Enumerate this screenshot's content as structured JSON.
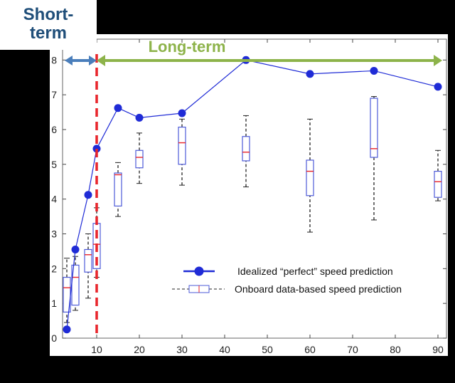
{
  "labels": {
    "short_term": "Short-term",
    "long_term": "Long-term"
  },
  "colors": {
    "short_term_text": "#1f4e79",
    "short_arrow": "#4a7ebb",
    "long_arrow": "#8db34a",
    "boundary_line": "#e8242a",
    "ideal_series": "#1f2bd6",
    "box_edge": "#4e5bd8",
    "box_median": "#e8242a",
    "whisker": "#222222"
  },
  "chart_data": {
    "type": "line+box",
    "xlim": [
      2,
      92
    ],
    "ylim": [
      0,
      8.6
    ],
    "xticks": [
      10,
      20,
      30,
      40,
      50,
      60,
      70,
      80,
      90
    ],
    "yticks": [
      0,
      1,
      2,
      3,
      4,
      5,
      6,
      7,
      8
    ],
    "boundary_x": 10,
    "short_term_range": [
      2.5,
      10
    ],
    "long_term_range": [
      10,
      91
    ],
    "series": [
      {
        "name": "Idealized “perfect” speed prediction",
        "type": "line",
        "x": [
          3,
          5,
          8,
          10,
          15,
          20,
          30,
          45,
          60,
          75,
          90
        ],
        "y": [
          0.25,
          2.55,
          4.12,
          5.45,
          6.62,
          6.34,
          6.47,
          8.0,
          7.6,
          7.69,
          7.23
        ]
      },
      {
        "name": "Onboard data-based speed prediction",
        "type": "box",
        "x": [
          3,
          5,
          8,
          10,
          15,
          20,
          30,
          45,
          60,
          75,
          90
        ],
        "whisker_low": [
          0.45,
          0.8,
          1.15,
          1.75,
          3.5,
          4.45,
          4.4,
          4.35,
          3.05,
          3.4,
          3.95
        ],
        "q1": [
          0.75,
          0.95,
          1.9,
          2.0,
          3.8,
          4.9,
          5.0,
          5.1,
          4.1,
          5.2,
          4.05
        ],
        "median": [
          1.45,
          1.75,
          2.4,
          2.7,
          4.7,
          5.2,
          5.62,
          5.35,
          4.8,
          5.45,
          4.5
        ],
        "q3": [
          1.75,
          2.1,
          2.55,
          3.3,
          4.75,
          5.4,
          6.07,
          5.8,
          5.12,
          6.9,
          4.8
        ],
        "whisker_high": [
          2.3,
          2.35,
          3.0,
          3.75,
          5.05,
          5.9,
          6.3,
          6.4,
          6.3,
          6.95,
          5.4
        ]
      }
    ]
  }
}
